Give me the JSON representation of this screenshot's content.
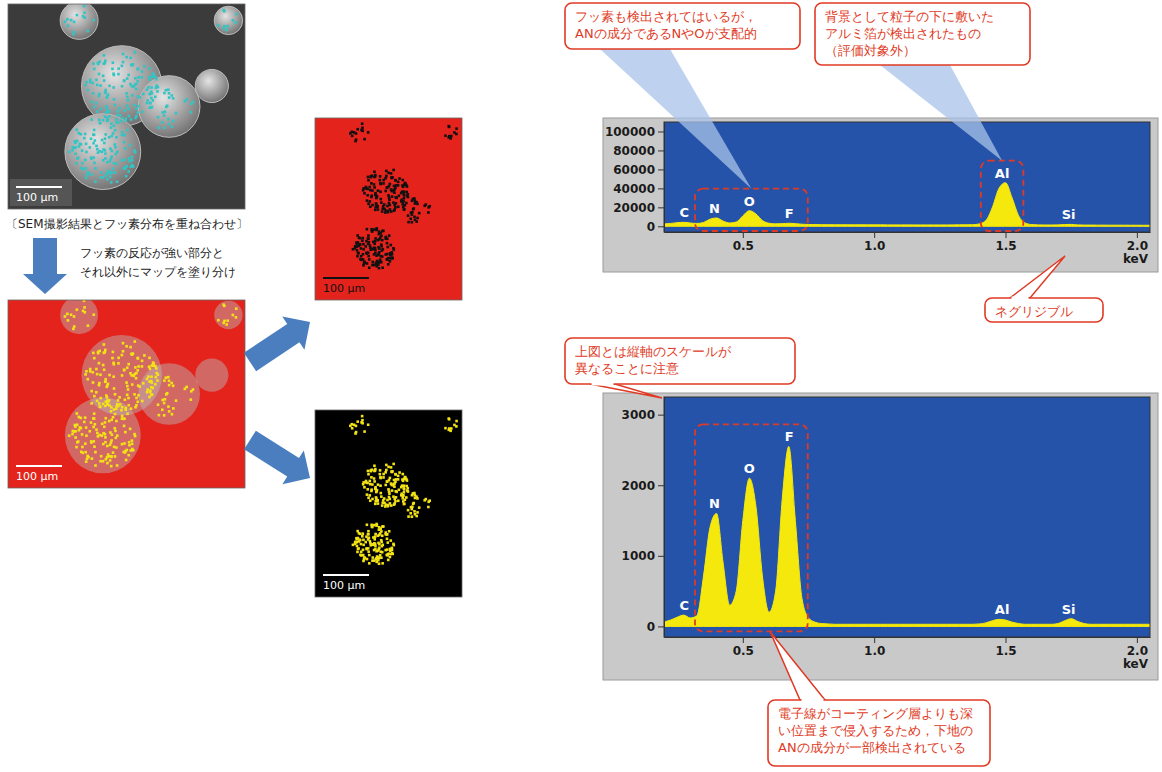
{
  "panels": {
    "sem_overlay": {
      "scale_bar": "100 µm",
      "caption": "〔SEM撮影結果とフッ素分布を重ね合わせ〕"
    },
    "arrow_note": [
      "フッ素の反応が強い部分と",
      "それ以外にマップを塗り分け"
    ],
    "map_split": {
      "scale_bar": "100 µm"
    },
    "map_other": {
      "scale_bar": "100 µm"
    },
    "map_fluorine": {
      "scale_bar": "100 µm"
    }
  },
  "chart_data": [
    {
      "type": "area",
      "x": [
        0.2,
        0.225,
        0.25,
        0.275,
        0.3,
        0.325,
        0.35,
        0.375,
        0.4,
        0.425,
        0.45,
        0.475,
        0.5,
        0.525,
        0.55,
        0.575,
        0.6,
        0.625,
        0.65,
        0.675,
        0.7,
        0.725,
        0.75,
        0.775,
        0.8,
        0.825,
        0.85,
        0.875,
        0.9,
        0.925,
        0.95,
        0.975,
        1,
        1.025,
        1.05,
        1.075,
        1.1,
        1.125,
        1.15,
        1.175,
        1.2,
        1.225,
        1.25,
        1.275,
        1.3,
        1.325,
        1.35,
        1.375,
        1.4,
        1.425,
        1.45,
        1.475,
        1.5,
        1.525,
        1.55,
        1.575,
        1.6,
        1.625,
        1.65,
        1.675,
        1.7,
        1.725,
        1.75,
        1.775,
        1.8,
        1.825,
        1.85,
        1.875,
        1.9,
        1.925,
        1.95,
        1.975,
        2,
        2.025,
        2.05
      ],
      "values": [
        2500,
        3000,
        3800,
        4200,
        3500,
        3000,
        4000,
        7500,
        8800,
        5500,
        3500,
        4500,
        11000,
        16500,
        13000,
        6000,
        3200,
        2600,
        2800,
        3200,
        2800,
        2200,
        1900,
        1800,
        1700,
        1700,
        1650,
        1650,
        1600,
        1600,
        1600,
        1550,
        1550,
        1550,
        1500,
        1500,
        1500,
        1500,
        1500,
        1450,
        1450,
        1450,
        1450,
        1450,
        1500,
        1550,
        1600,
        1700,
        2500,
        6000,
        20000,
        40000,
        46000,
        30000,
        11000,
        3500,
        1800,
        1500,
        1400,
        1400,
        1500,
        1900,
        2000,
        1500,
        1300,
        1300,
        1250,
        1250,
        1200,
        1200,
        1200,
        1150,
        1150,
        1100,
        1100
      ],
      "color": "#f4e80c",
      "xlim": [
        0.2,
        2.05
      ],
      "xticks": [
        0.5,
        {
          "value": 1,
          "label": "1.0"
        },
        1.5,
        {
          "value": 2,
          "label": "2.0"
        }
      ],
      "x_label": "keV",
      "ylim": [
        -6000,
        110000
      ],
      "yticks": [
        0,
        20000,
        40000,
        60000,
        80000,
        100000
      ],
      "peak_labels": [
        {
          "label": "C",
          "x": 0.277
        },
        {
          "label": "N",
          "x": 0.392
        },
        {
          "label": "O",
          "x": 0.525
        },
        {
          "label": "F",
          "x": 0.677
        },
        {
          "label": "Al",
          "x": 1.487
        },
        {
          "label": "Si",
          "x": 1.74
        }
      ],
      "annotations": [
        {
          "text": [
            "フッ素も検出されてはいるが，",
            "ANの成分であるNやOが支配的"
          ]
        },
        {
          "text": [
            "背景として粒子の下に敷いた",
            "アルミ箔が検出されたもの",
            "（評価対象外）"
          ]
        },
        {
          "text": [
            "ネグリジブル"
          ]
        }
      ]
    },
    {
      "type": "area",
      "x": [
        0.2,
        0.225,
        0.25,
        0.275,
        0.3,
        0.325,
        0.35,
        0.375,
        0.4,
        0.425,
        0.45,
        0.475,
        0.5,
        0.525,
        0.55,
        0.575,
        0.6,
        0.625,
        0.65,
        0.675,
        0.7,
        0.725,
        0.75,
        0.775,
        0.8,
        0.825,
        0.85,
        0.875,
        0.9,
        0.925,
        0.95,
        0.975,
        1,
        1.025,
        1.05,
        1.075,
        1.1,
        1.125,
        1.15,
        1.175,
        1.2,
        1.225,
        1.25,
        1.275,
        1.3,
        1.325,
        1.35,
        1.375,
        1.4,
        1.425,
        1.45,
        1.475,
        1.5,
        1.525,
        1.55,
        1.575,
        1.6,
        1.625,
        1.65,
        1.675,
        1.7,
        1.725,
        1.75,
        1.775,
        1.8,
        1.825,
        1.85,
        1.875,
        1.9,
        1.925,
        1.95,
        1.975,
        2,
        2.025,
        2.05
      ],
      "values": [
        60,
        90,
        130,
        160,
        120,
        150,
        700,
        1400,
        1600,
        900,
        300,
        500,
        1500,
        2100,
        1700,
        700,
        200,
        500,
        1800,
        2550,
        1500,
        400,
        120,
        60,
        40,
        35,
        30,
        30,
        30,
        30,
        30,
        30,
        30,
        30,
        30,
        30,
        30,
        30,
        30,
        30,
        30,
        30,
        30,
        30,
        30,
        30,
        30,
        30,
        35,
        50,
        80,
        100,
        90,
        60,
        40,
        30,
        30,
        30,
        30,
        30,
        40,
        80,
        110,
        70,
        40,
        30,
        30,
        30,
        30,
        30,
        30,
        30,
        30,
        30,
        30
      ],
      "color": "#f4e80c",
      "xlim": [
        0.2,
        2.05
      ],
      "xticks": [
        0.5,
        {
          "value": 1,
          "label": "1.0"
        },
        1.5,
        {
          "value": 2,
          "label": "2.0"
        }
      ],
      "x_label": "keV",
      "ylim": [
        -150,
        3250
      ],
      "yticks": [
        0,
        1000,
        2000,
        3000
      ],
      "peak_labels": [
        {
          "label": "C",
          "x": 0.277
        },
        {
          "label": "N",
          "x": 0.392
        },
        {
          "label": "O",
          "x": 0.525
        },
        {
          "label": "F",
          "x": 0.677
        },
        {
          "label": "Al",
          "x": 1.487
        },
        {
          "label": "Si",
          "x": 1.74
        }
      ],
      "annotations": [
        {
          "text": [
            "上図とは縦軸のスケールが",
            "異なることに注意"
          ]
        },
        {
          "text": [
            "電子線がコーティング層よりも深",
            "い位置まで侵入するため，下地の",
            "ANの成分が一部検出されている"
          ]
        }
      ]
    }
  ]
}
